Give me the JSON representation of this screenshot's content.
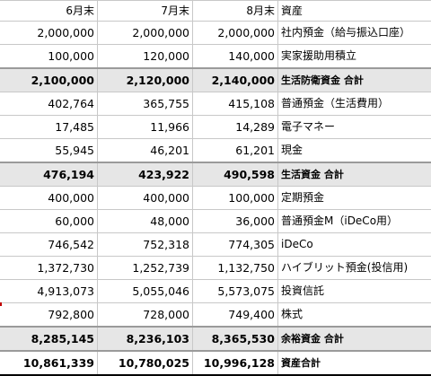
{
  "header": {
    "col1": "6月末",
    "col2": "7月末",
    "col3": "8月末",
    "col4": "資産"
  },
  "rows": [
    {
      "type": "item",
      "v1": "2,000,000",
      "v2": "2,000,000",
      "v3": "2,000,000",
      "label": "社内預金（給与振込口座）"
    },
    {
      "type": "item",
      "v1": "100,000",
      "v2": "120,000",
      "v3": "140,000",
      "label": "実家援助用積立"
    },
    {
      "type": "subtotal",
      "v1": "2,100,000",
      "v2": "2,120,000",
      "v3": "2,140,000",
      "label": "生活防衛資金 合計"
    },
    {
      "type": "item",
      "v1": "402,764",
      "v2": "365,755",
      "v3": "415,108",
      "label": "普通預金（生活費用）"
    },
    {
      "type": "item",
      "v1": "17,485",
      "v2": "11,966",
      "v3": "14,289",
      "label": "電子マネー"
    },
    {
      "type": "item",
      "v1": "55,945",
      "v2": "46,201",
      "v3": "61,201",
      "label": "現金"
    },
    {
      "type": "subtotal",
      "v1": "476,194",
      "v2": "423,922",
      "v3": "490,598",
      "label": "生活資金 合計"
    },
    {
      "type": "item",
      "v1": "400,000",
      "v2": "400,000",
      "v3": "100,000",
      "label": "定期預金"
    },
    {
      "type": "item",
      "v1": "60,000",
      "v2": "48,000",
      "v3": "36,000",
      "label": "普通預金M（iDeCo用）"
    },
    {
      "type": "item",
      "v1": "746,542",
      "v2": "752,318",
      "v3": "774,305",
      "label": "iDeCo"
    },
    {
      "type": "item",
      "v1": "1,372,730",
      "v2": "1,252,739",
      "v3": "1,132,750",
      "label": "ハイブリット預金(投信用)"
    },
    {
      "type": "item",
      "v1": "4,913,073",
      "v2": "5,055,046",
      "v3": "5,573,075",
      "label": "投資信託"
    },
    {
      "type": "item",
      "v1": "792,800",
      "v2": "728,000",
      "v3": "749,400",
      "label": "株式"
    },
    {
      "type": "subtotal",
      "v1": "8,285,145",
      "v2": "8,236,103",
      "v3": "8,365,530",
      "label": "余裕資金 合計"
    },
    {
      "type": "total",
      "v1": "10,861,339",
      "v2": "10,780,025",
      "v3": "10,996,128",
      "label": "資産合計"
    }
  ]
}
